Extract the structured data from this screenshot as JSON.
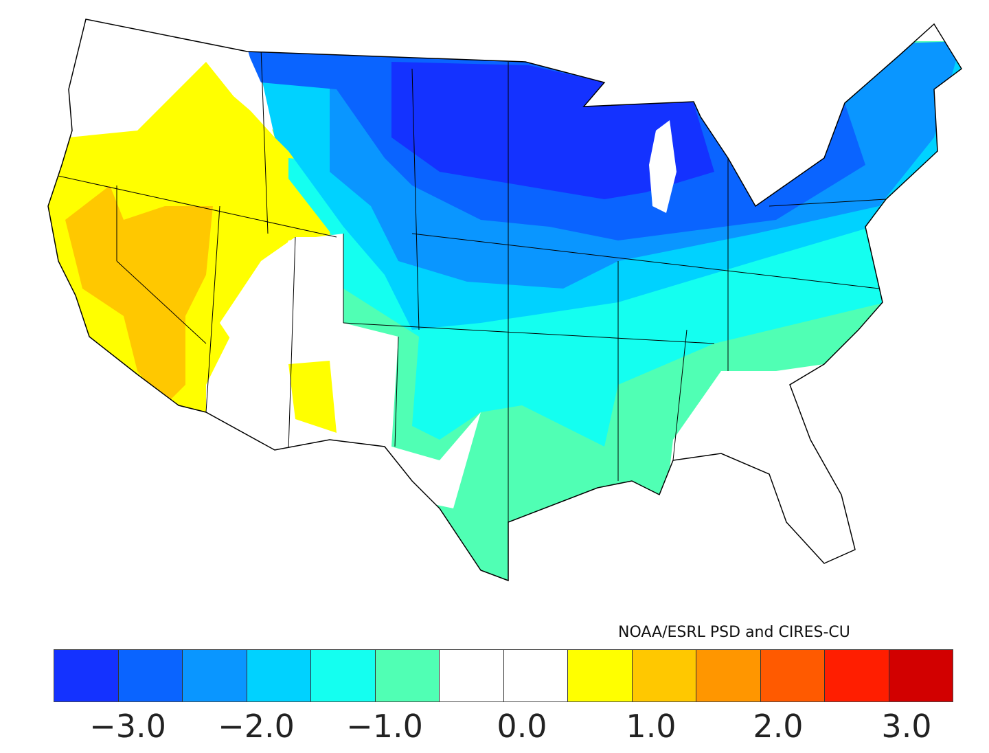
{
  "credit": "NOAA/ESRL PSD and CIRES-CU",
  "colorbar": {
    "colors": [
      "#1432ff",
      "#0a64ff",
      "#0a96ff",
      "#00d2ff",
      "#14fff0",
      "#50ffb4",
      "#ffffff",
      "#ffffff",
      "#ffff00",
      "#ffc800",
      "#ff9600",
      "#ff5a00",
      "#ff1e00",
      "#d20000"
    ],
    "tick_labels": [
      "−3.0",
      "−2.0",
      "−1.0",
      "0.0",
      "1.0",
      "2.0",
      "3.0"
    ]
  },
  "map": {
    "region": "Contiguous United States climate divisions",
    "west_anomaly": "positive (yellow/orange)",
    "north_central_anomaly": "strongly negative (dark blue)"
  }
}
